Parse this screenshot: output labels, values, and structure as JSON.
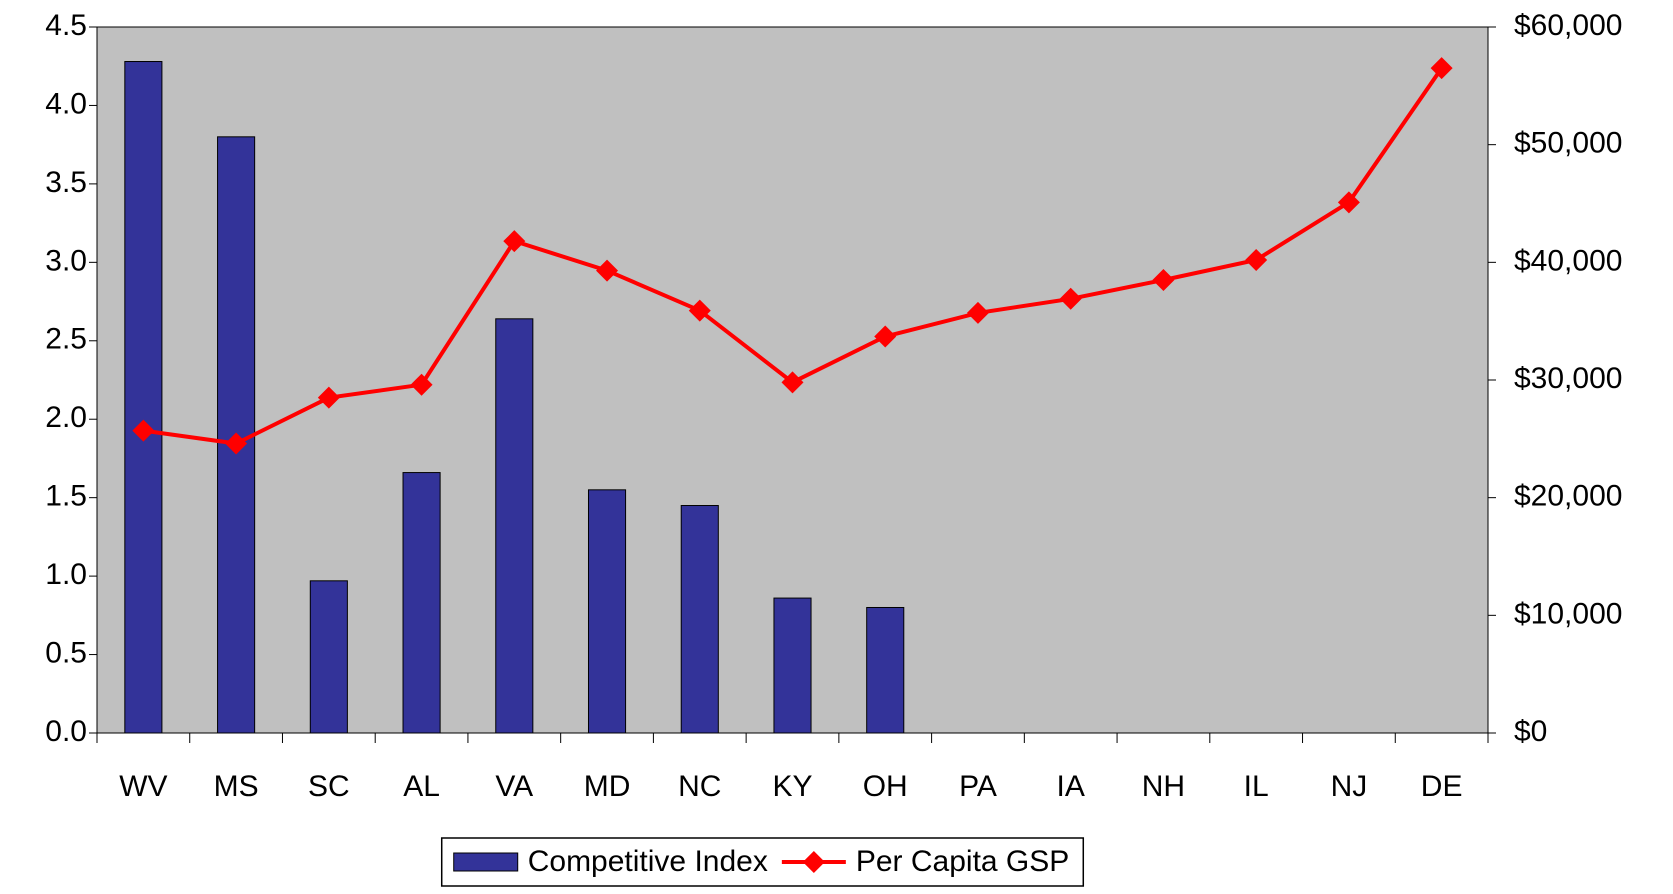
{
  "chart_data": {
    "type": "bar",
    "categories": [
      "WV",
      "MS",
      "SC",
      "AL",
      "VA",
      "MD",
      "NC",
      "KY",
      "OH",
      "PA",
      "IA",
      "NH",
      "IL",
      "NJ",
      "DE"
    ],
    "series": [
      {
        "name": "Competitive Index",
        "type": "bar",
        "color": "#333399",
        "axis": "y",
        "values": [
          4.28,
          3.8,
          0.97,
          1.66,
          2.64,
          1.55,
          1.45,
          0.86,
          0.8,
          null,
          null,
          null,
          null,
          null,
          null
        ]
      },
      {
        "name": "Per Capita GSP",
        "type": "line",
        "color": "#ff0000",
        "axis": "y2",
        "values": [
          25700,
          24600,
          28500,
          29600,
          41800,
          39300,
          35900,
          29800,
          33700,
          35700,
          36900,
          38500,
          40200,
          45100,
          56500
        ]
      }
    ],
    "ylim": [
      0,
      4.5
    ],
    "yticks": [
      {
        "value": 0,
        "label": "0.0"
      },
      0.5,
      {
        "value": 1,
        "label": "1.0"
      },
      1.5,
      {
        "value": 2,
        "label": "2.0"
      },
      2.5,
      {
        "value": 3,
        "label": "3.0"
      },
      3.5,
      {
        "value": 4,
        "label": "4.0"
      },
      4.5
    ],
    "y2lim": [
      0,
      60000
    ],
    "y2ticks": [
      {
        "value": 0,
        "label": "$0"
      },
      {
        "value": 10000,
        "label": "$10,000"
      },
      {
        "value": 20000,
        "label": "$20,000"
      },
      {
        "value": 30000,
        "label": "$30,000"
      },
      {
        "value": 40000,
        "label": "$40,000"
      },
      {
        "value": 50000,
        "label": "$50,000"
      },
      {
        "value": 60000,
        "label": "$60,000"
      }
    ],
    "plot_background": "#c0c0c0",
    "legend": "bottom"
  }
}
